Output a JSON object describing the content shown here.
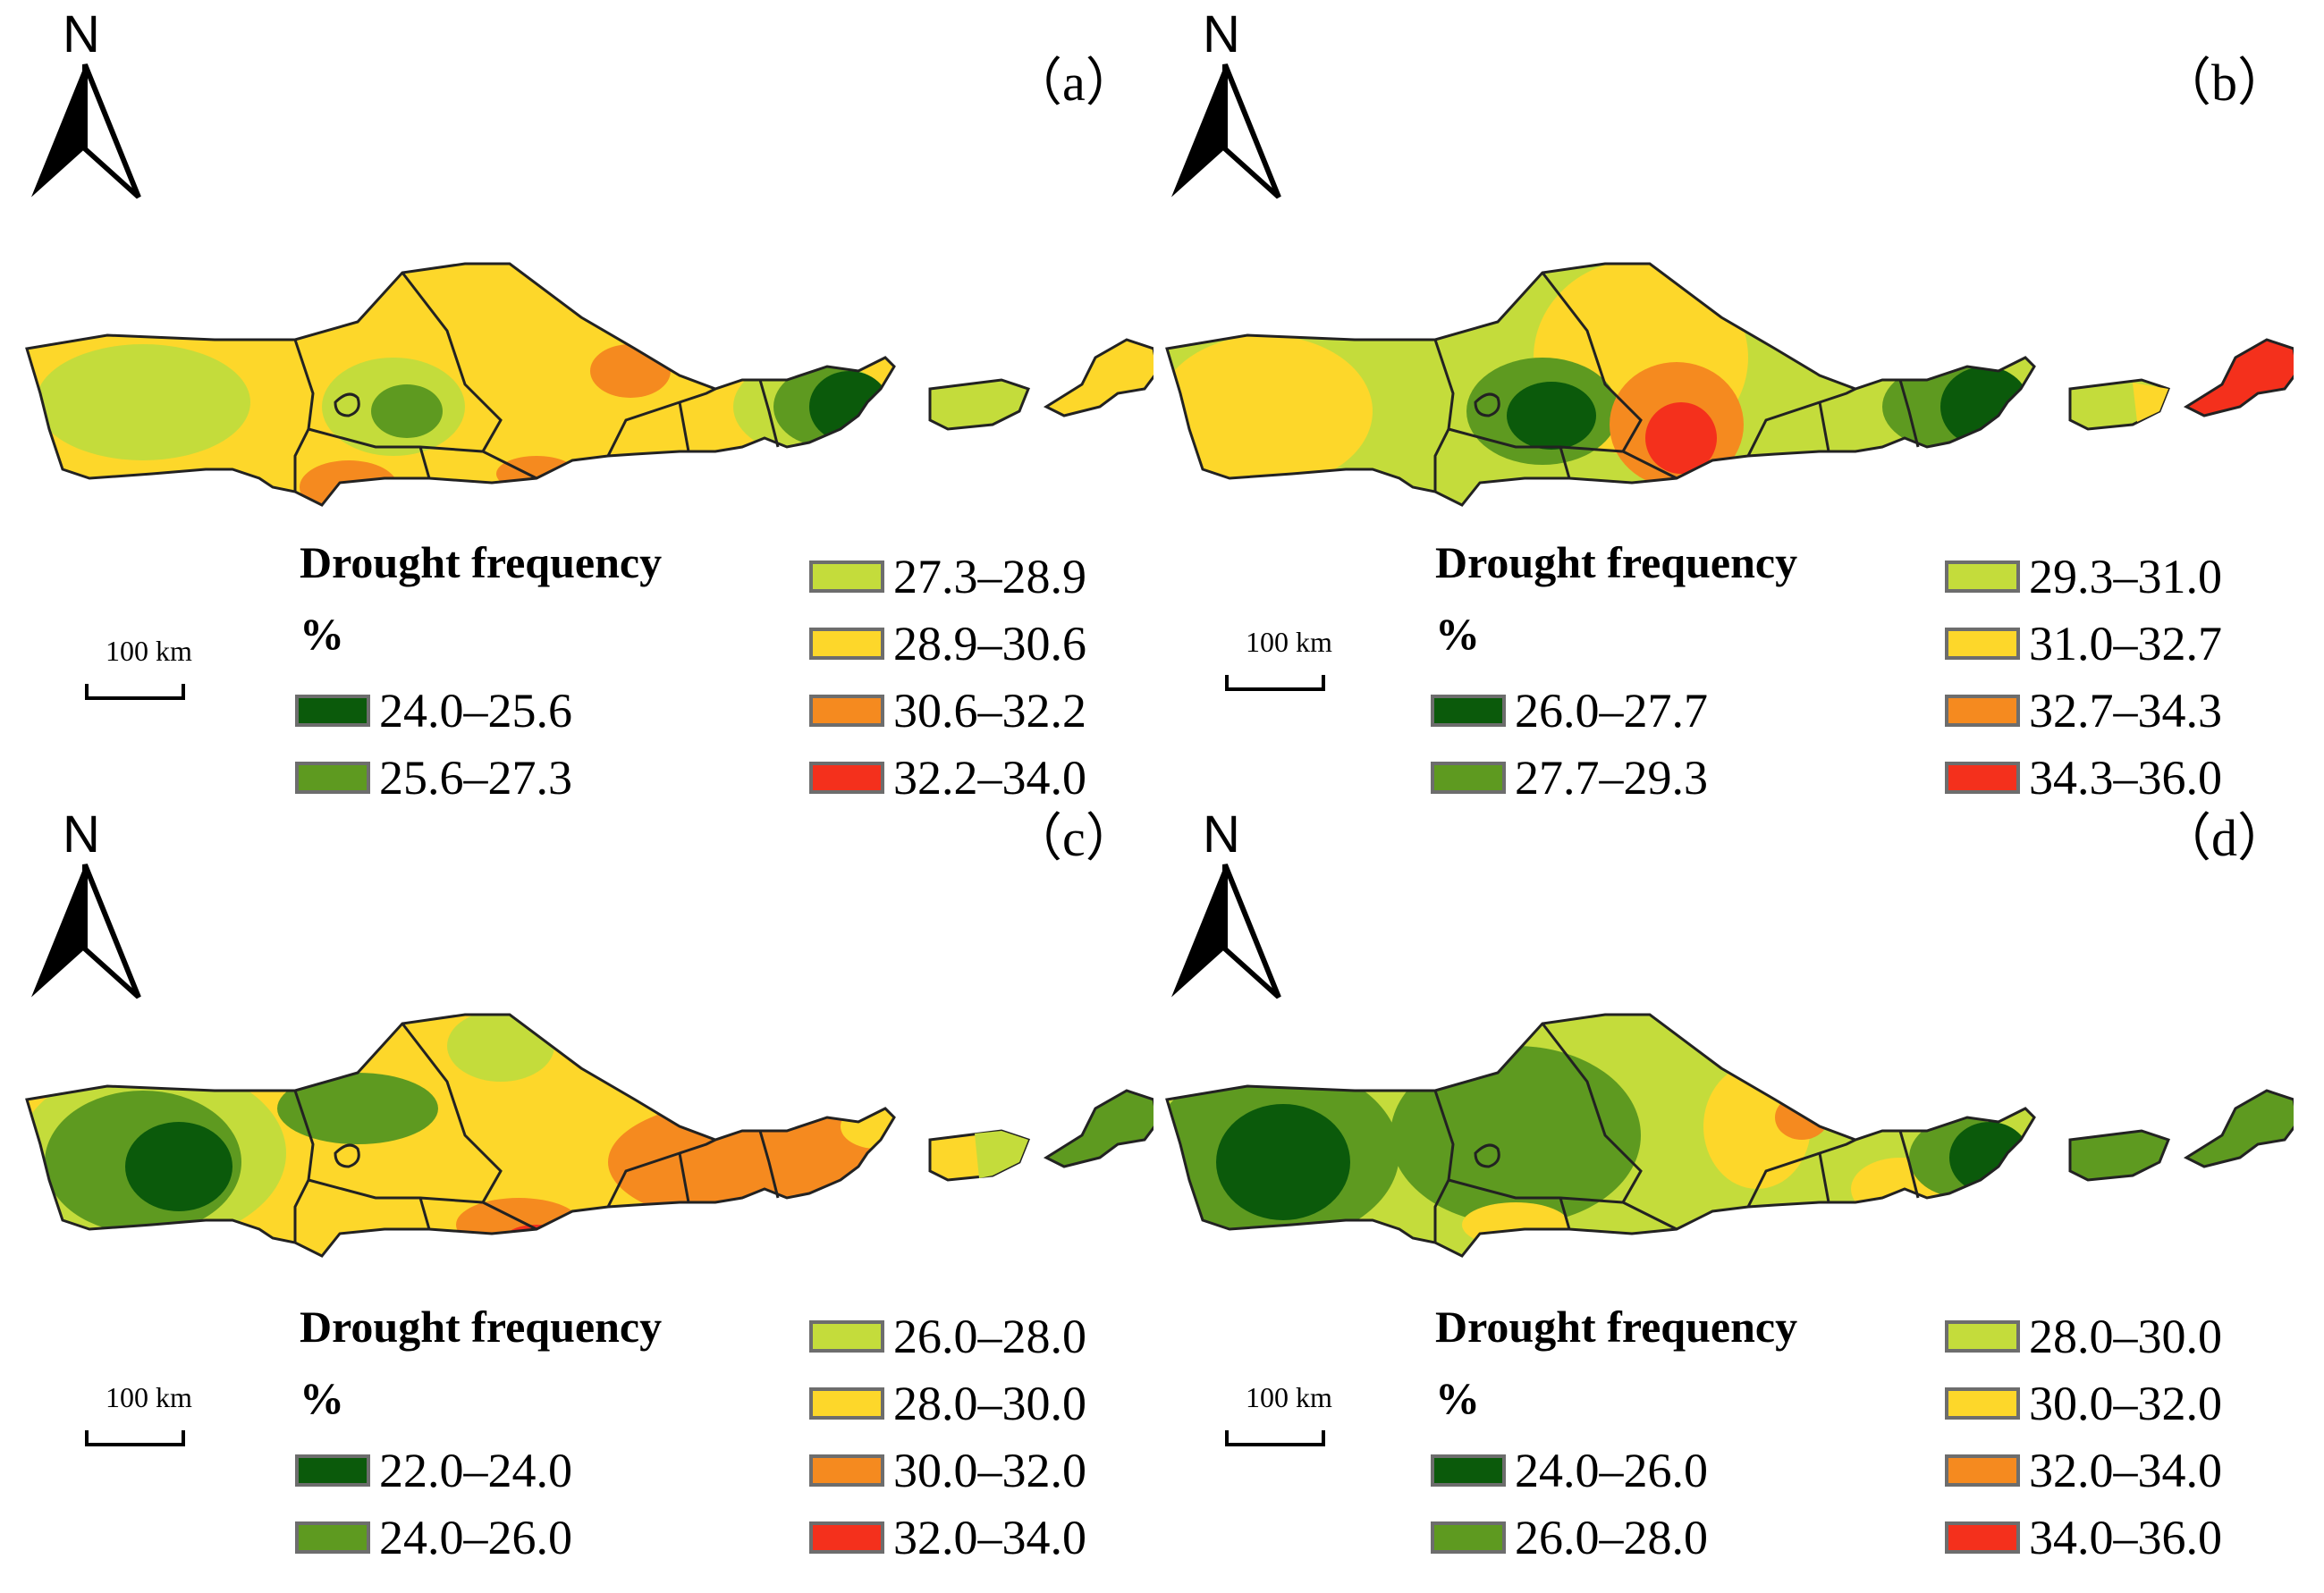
{
  "figure": {
    "legend_title": "Drought frequency",
    "legend_unit": "%",
    "scale_label": "100 km",
    "north_label": "N",
    "colors": [
      "#0b5a0b",
      "#5e9a20",
      "#c4dc3b",
      "#fdd72a",
      "#f58a1f",
      "#f4301c"
    ]
  },
  "panels": [
    {
      "label": "（a）",
      "classes": [
        "24.0–25.6",
        "25.6–27.3",
        "27.3–28.9",
        "28.9–30.6",
        "30.6–32.2",
        "32.2–34.0"
      ]
    },
    {
      "label": "（b）",
      "classes": [
        "26.0–27.7",
        "27.7–29.3",
        "29.3–31.0",
        "31.0–32.7",
        "32.7–34.3",
        "34.3–36.0"
      ]
    },
    {
      "label": "（c）",
      "classes": [
        "22.0–24.0",
        "24.0–26.0",
        "26.0–28.0",
        "28.0–30.0",
        "30.0–32.0",
        "32.0–34.0"
      ]
    },
    {
      "label": "（d）",
      "classes": [
        "24.0–26.0",
        "26.0–28.0",
        "28.0–30.0",
        "30.0–32.0",
        "32.0–34.0",
        "34.0–36.0"
      ]
    }
  ]
}
